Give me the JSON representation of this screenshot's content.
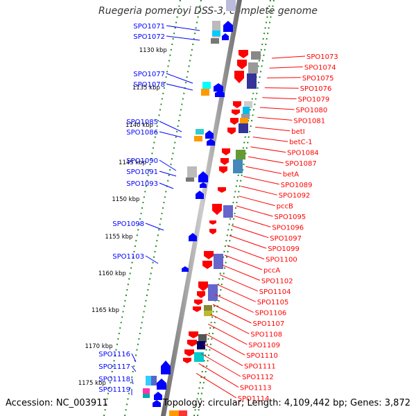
{
  "title": "Ruegeria pomeroyi DSS-3, complete genome",
  "footer": {
    "accession": "Accession: NC_003911",
    "topology": "Topology: circular; Length: 4,109,442 bp; Genes: 3,872"
  },
  "colors": {
    "backbone": "#999999",
    "forward": "#0000ff",
    "reverse": "#ff0000",
    "scale_dots": "#228b22"
  },
  "scale_ticks": [
    "1130 kbp",
    "1135 kbp",
    "1140 kbp",
    "1145 kbp",
    "1150 kbp",
    "1155 kbp",
    "1160 kbp",
    "1165 kbp",
    "1170 kbp",
    "1175 kbp"
  ],
  "forward_genes": [
    "SPO1071",
    "SPO1072",
    "SPO1077",
    "SPO1078",
    "SPO1085",
    "SPO1086",
    "SPO1090",
    "SPO1091",
    "SPO1093",
    "SPO1098",
    "SPO1103",
    "SPO1116",
    "SPO1117",
    "SPO1118",
    "SPO1119"
  ],
  "reverse_genes": [
    "SPO1073",
    "SPO1074",
    "SPO1075",
    "SPO1076",
    "SPO1079",
    "SPO1080",
    "SPO1081",
    "betI",
    "betC-1",
    "SPO1084",
    "SPO1087",
    "betA",
    "SPO1089",
    "SPO1092",
    "pccB",
    "SPO1095",
    "SPO1096",
    "SPO1097",
    "SPO1099",
    "SPO1100",
    "pccA",
    "SPO1102",
    "SPO1104",
    "SPO1105",
    "SPO1106",
    "SPO1107",
    "SPO1108",
    "SPO1109",
    "SPO1110",
    "SPO1111",
    "SPO1112",
    "SPO1113",
    "SPO1114"
  ]
}
